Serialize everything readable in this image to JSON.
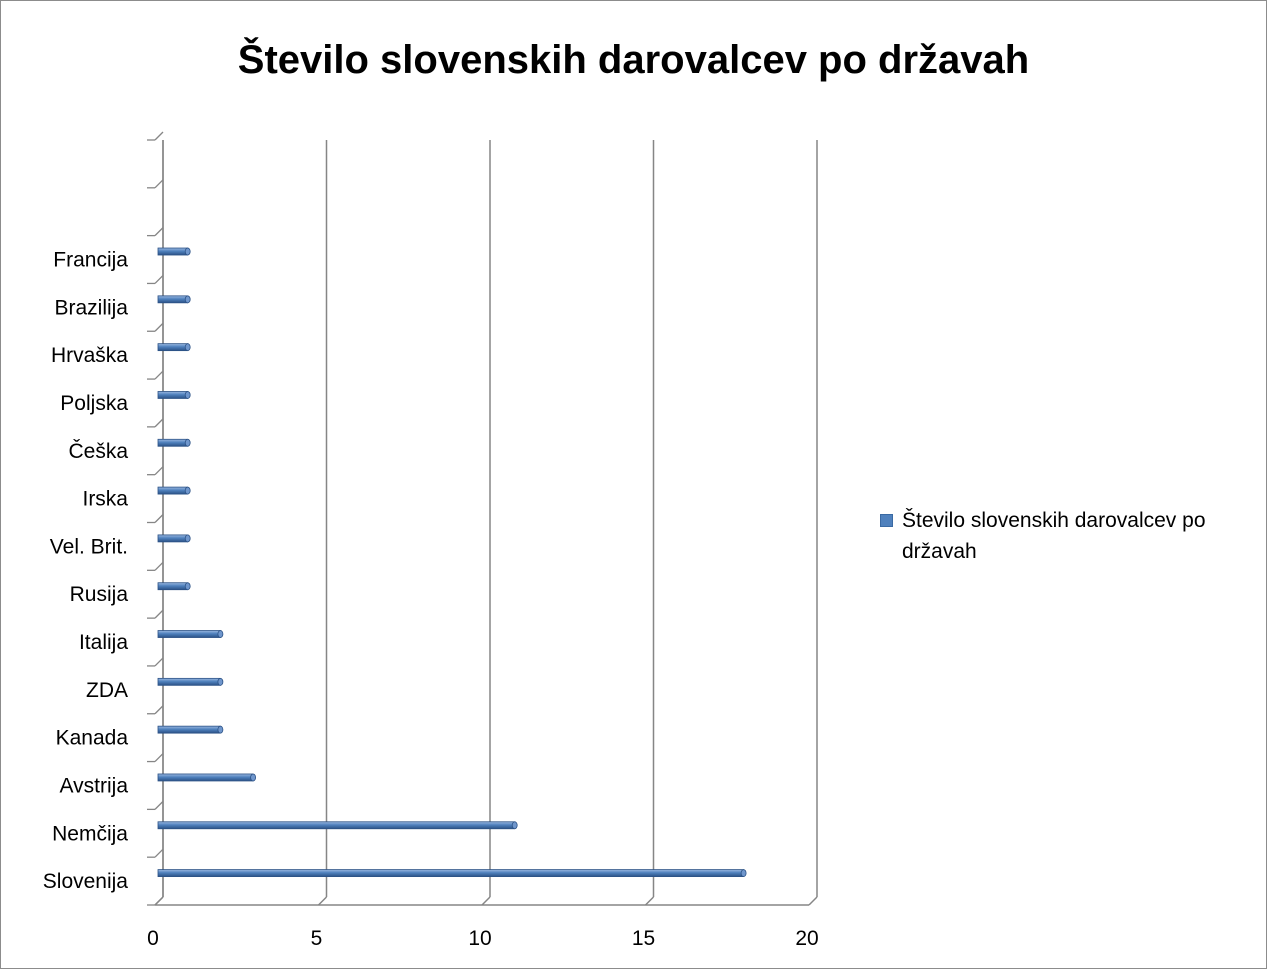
{
  "chart_data": {
    "type": "bar",
    "orientation": "horizontal",
    "style": "3d-cylinder",
    "title": "Število slovenskih darovalcev po državah",
    "categories": [
      "Slovenija",
      "Nemčija",
      "Avstrija",
      "Kanada",
      "ZDA",
      "Italija",
      "Rusija",
      "Vel. Brit.",
      "Irska",
      "Češka",
      "Poljska",
      "Hrvaška",
      "Brazilija",
      "Francija"
    ],
    "series": [
      {
        "name": "Število slovenskih darovalcev po državah",
        "values": [
          18,
          11,
          3,
          2,
          2,
          2,
          1,
          1,
          1,
          1,
          1,
          1,
          1,
          1
        ]
      }
    ],
    "x_ticks": [
      "0",
      "5",
      "10",
      "15",
      "20"
    ],
    "xlim": [
      0,
      20
    ],
    "grid": "vertical",
    "legend_position": "right",
    "bar_color": "#4f81bd"
  }
}
